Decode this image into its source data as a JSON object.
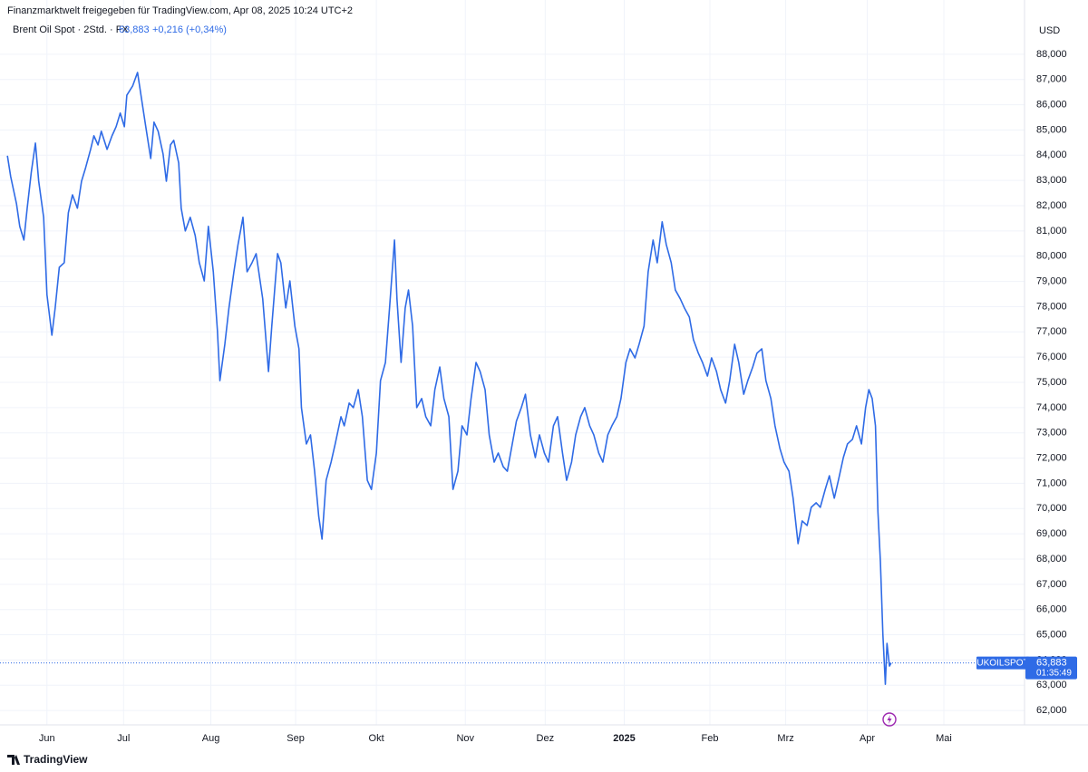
{
  "chart_data": {
    "type": "line",
    "title": "Finanzmarktwelt freigegeben für TradingView.com, Apr 08, 2025 10:24 UTC+2",
    "change": "+0,216 (+0,34%)",
    "currency": "USD",
    "symbol": "UKOILSPOT",
    "countdown": "01:35:49",
    "brand": "TradingView",
    "last_price": {
      "value": 63.883,
      "label": "63,883"
    },
    "grid": true,
    "x": [
      -0.48,
      -0.44,
      -0.37,
      -0.33,
      -0.28,
      -0.24,
      -0.19,
      -0.14,
      -0.1,
      -0.04,
      0,
      0.06,
      0.1,
      0.15,
      0.21,
      0.26,
      0.31,
      0.37,
      0.42,
      0.47,
      0.53,
      0.57,
      0.62,
      0.66,
      0.73,
      0.79,
      0.84,
      0.89,
      0.94,
      0.97,
      1.04,
      1.1,
      1.15,
      1.2,
      1.26,
      1.3,
      1.35,
      1.41,
      1.45,
      1.5,
      1.54,
      1.6,
      1.63,
      1.68,
      1.74,
      1.8,
      1.85,
      1.91,
      1.96,
      2.02,
      2.07,
      2.1,
      2.16,
      2.21,
      2.27,
      2.32,
      2.38,
      2.43,
      2.49,
      2.54,
      2.62,
      2.69,
      2.73,
      2.8,
      2.84,
      2.9,
      2.95,
      3.01,
      3.06,
      3.09,
      3.15,
      3.2,
      3.25,
      3.3,
      3.34,
      3.39,
      3.45,
      3.5,
      3.57,
      3.61,
      3.67,
      3.72,
      3.78,
      3.83,
      3.89,
      3.94,
      4.0,
      4.05,
      4.11,
      4.16,
      4.22,
      4.25,
      4.3,
      4.35,
      4.39,
      4.44,
      4.49,
      4.55,
      4.6,
      4.66,
      4.71,
      4.77,
      4.82,
      4.88,
      4.93,
      4.99,
      5.04,
      5.1,
      5.15,
      5.21,
      5.26,
      5.32,
      5.37,
      5.43,
      5.48,
      5.54,
      5.59,
      5.65,
      5.7,
      5.76,
      5.81,
      5.87,
      5.93,
      5.98,
      6.04,
      6.09,
      6.15,
      6.2,
      6.26,
      6.31,
      6.37,
      6.42,
      6.48,
      6.53,
      6.59,
      6.64,
      6.7,
      6.75,
      6.81,
      6.86,
      6.92,
      6.97,
      7.03,
      7.08,
      7.14,
      7.19,
      7.25,
      7.3,
      7.36,
      7.41,
      7.47,
      7.52,
      7.58,
      7.63,
      7.69,
      7.74,
      7.8,
      7.85,
      7.91,
      7.96,
      8.02,
      8.07,
      8.13,
      8.18,
      8.24,
      8.29,
      8.35,
      8.4,
      8.46,
      8.51,
      8.57,
      8.62,
      8.68,
      8.73,
      8.79,
      8.84,
      8.9,
      8.95,
      9.01,
      9.06,
      9.12,
      9.17,
      9.23,
      9.28,
      9.34,
      9.39,
      9.45,
      9.5,
      9.56,
      9.61,
      9.67,
      9.72,
      9.78,
      9.83,
      9.89,
      9.94,
      9.98,
      10.02,
      10.06,
      10.09,
      10.12,
      10.15,
      10.18,
      10.2,
      10.23,
      10.25
    ],
    "series": [
      {
        "name": "Brent Oil Spot · 2Std. · FX",
        "color": "#2f6be6",
        "values": [
          83.98,
          83.15,
          82.08,
          81.18,
          80.64,
          81.9,
          83.33,
          84.48,
          82.97,
          81.54,
          78.48,
          76.87,
          77.95,
          79.56,
          79.74,
          81.72,
          82.43,
          81.9,
          82.97,
          83.51,
          84.23,
          84.77,
          84.41,
          84.95,
          84.23,
          84.77,
          85.13,
          85.67,
          85.13,
          86.38,
          86.74,
          87.28,
          86.2,
          85.13,
          83.87,
          85.31,
          84.95,
          84.05,
          82.97,
          84.41,
          84.59,
          83.69,
          81.9,
          81.0,
          81.54,
          80.82,
          79.74,
          79.02,
          81.18,
          79.38,
          77.05,
          75.07,
          76.51,
          77.95,
          79.38,
          80.46,
          81.54,
          79.38,
          79.74,
          80.1,
          78.31,
          75.43,
          77.23,
          80.1,
          79.74,
          77.95,
          79.02,
          77.23,
          76.33,
          74.0,
          72.56,
          72.92,
          71.48,
          69.69,
          68.79,
          71.12,
          71.84,
          72.56,
          73.64,
          73.28,
          74.18,
          74.0,
          74.71,
          73.64,
          71.12,
          70.76,
          72.2,
          75.07,
          75.79,
          77.95,
          80.64,
          78.31,
          75.79,
          77.95,
          78.66,
          77.23,
          74.0,
          74.36,
          73.64,
          73.28,
          74.71,
          75.61,
          74.36,
          73.64,
          70.76,
          71.48,
          73.28,
          72.92,
          74.36,
          75.79,
          75.43,
          74.71,
          72.92,
          71.84,
          72.2,
          71.66,
          71.48,
          72.56,
          73.46,
          74.0,
          74.53,
          72.92,
          72.02,
          72.92,
          72.2,
          71.84,
          73.28,
          73.64,
          72.2,
          71.12,
          71.84,
          72.92,
          73.64,
          74.0,
          73.28,
          72.92,
          72.2,
          71.84,
          72.92,
          73.28,
          73.64,
          74.36,
          75.79,
          76.33,
          75.97,
          76.51,
          77.23,
          79.38,
          80.64,
          79.74,
          81.36,
          80.46,
          79.74,
          78.66,
          78.31,
          77.95,
          77.59,
          76.69,
          76.15,
          75.79,
          75.25,
          75.97,
          75.43,
          74.71,
          74.18,
          75.07,
          76.51,
          75.79,
          74.53,
          75.07,
          75.61,
          76.15,
          76.33,
          75.07,
          74.36,
          73.28,
          72.38,
          71.84,
          71.48,
          70.41,
          68.61,
          69.51,
          69.33,
          70.05,
          70.23,
          70.05,
          70.76,
          71.3,
          70.41,
          71.12,
          72.02,
          72.56,
          72.74,
          73.28,
          72.56,
          74.0,
          74.71,
          74.36,
          73.28,
          69.87,
          67.89,
          65.02,
          63.04,
          64.66,
          63.76,
          63.883
        ]
      }
    ],
    "xlim": [
      -0.57,
      11.87
    ],
    "xticks": [
      {
        "value": 0,
        "label": "Jun"
      },
      {
        "value": 0.93,
        "label": "Jul"
      },
      {
        "value": 1.99,
        "label": "Aug"
      },
      {
        "value": 3.02,
        "label": "Sep"
      },
      {
        "value": 4.0,
        "label": "Okt"
      },
      {
        "value": 5.08,
        "label": "Nov"
      },
      {
        "value": 6.05,
        "label": "Dez"
      },
      {
        "value": 7.01,
        "label": "2025"
      },
      {
        "value": 8.05,
        "label": "Feb"
      },
      {
        "value": 8.97,
        "label": "Mrz"
      },
      {
        "value": 9.96,
        "label": "Apr"
      },
      {
        "value": 10.89,
        "label": "Mai"
      }
    ],
    "ylim": [
      61.43,
      90.15
    ],
    "yticks": [
      {
        "value": 62,
        "label": "62,000"
      },
      {
        "value": 63,
        "label": "63,000"
      },
      {
        "value": 64,
        "label": "64,000"
      },
      {
        "value": 65,
        "label": "65,000"
      },
      {
        "value": 66,
        "label": "66,000"
      },
      {
        "value": 67,
        "label": "67,000"
      },
      {
        "value": 68,
        "label": "68,000"
      },
      {
        "value": 69,
        "label": "69,000"
      },
      {
        "value": 70,
        "label": "70,000"
      },
      {
        "value": 71,
        "label": "71,000"
      },
      {
        "value": 72,
        "label": "72,000"
      },
      {
        "value": 73,
        "label": "73,000"
      },
      {
        "value": 74,
        "label": "74,000"
      },
      {
        "value": 75,
        "label": "75,000"
      },
      {
        "value": 76,
        "label": "76,000"
      },
      {
        "value": 77,
        "label": "77,000"
      },
      {
        "value": 78,
        "label": "78,000"
      },
      {
        "value": 79,
        "label": "79,000"
      },
      {
        "value": 80,
        "label": "80,000"
      },
      {
        "value": 81,
        "label": "81,000"
      },
      {
        "value": 82,
        "label": "82,000"
      },
      {
        "value": 83,
        "label": "83,000"
      },
      {
        "value": 84,
        "label": "84,000"
      },
      {
        "value": 85,
        "label": "85,000"
      },
      {
        "value": 86,
        "label": "86,000"
      },
      {
        "value": 87,
        "label": "87,000"
      },
      {
        "value": 88,
        "label": "88,000"
      }
    ]
  }
}
